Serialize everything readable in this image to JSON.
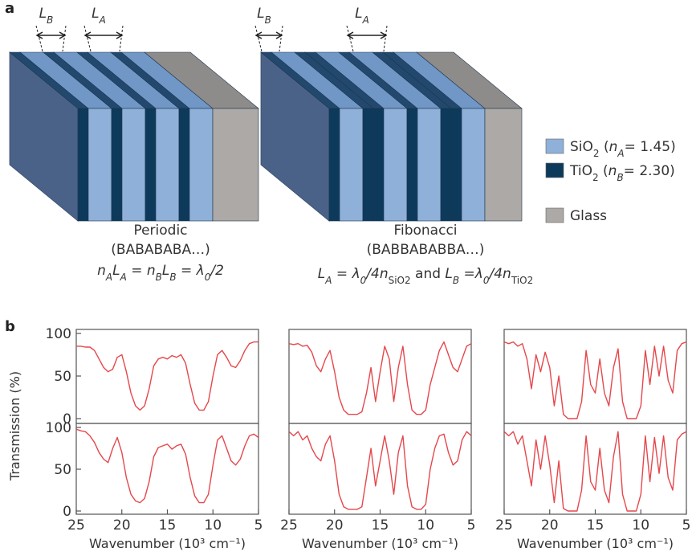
{
  "panel_a": {
    "label": "a",
    "dimensions": [
      {
        "letter": "L",
        "sub": "B"
      },
      {
        "letter": "L",
        "sub": "A"
      },
      {
        "letter": "L",
        "sub": "B"
      },
      {
        "letter": "L",
        "sub": "A"
      }
    ],
    "legend": [
      {
        "parts": [
          "SiO",
          "2",
          " (",
          "n",
          "A",
          "= 1.45)"
        ]
      },
      {
        "parts": [
          "TiO",
          "2",
          " (",
          "n",
          "B",
          "= 2.30)"
        ]
      },
      {
        "parts": [
          "Glass"
        ]
      }
    ],
    "periodic": {
      "name": "Periodic",
      "sequence": "(BABABABA…)",
      "formula": [
        "n",
        "A",
        "L",
        "A",
        " = ",
        "n",
        "B",
        "L",
        "B",
        " = ",
        "λ",
        "0",
        "/2"
      ]
    },
    "fibonacci": {
      "name": "Fibonacci",
      "sequence": "(BABBABABBA…)",
      "formula": [
        "L",
        "A",
        " = ",
        "λ",
        "0",
        "/4",
        "n",
        "SiO2",
        " and ",
        "L",
        "B",
        " =",
        "λ",
        "0",
        "/4",
        "n",
        "TiO2"
      ]
    }
  },
  "panel_b": {
    "label": "b",
    "ylabel": "Transmission (%)"
  },
  "chart_data": [
    {
      "type": "line",
      "x": [
        25,
        24.5,
        24,
        23.5,
        23,
        22.5,
        22,
        21.5,
        21,
        20.5,
        20,
        19.5,
        19,
        18.5,
        18,
        17.5,
        17,
        16.5,
        16,
        15.5,
        15,
        14.5,
        14,
        13.5,
        13,
        12.5,
        12,
        11.5,
        11,
        10.5,
        10,
        9.5,
        9,
        8.5,
        8,
        7.5,
        7,
        6.5,
        6,
        5.5,
        5
      ],
      "series": [
        {
          "color": "#e5474c",
          "values": [
            85,
            85,
            84,
            84,
            80,
            70,
            60,
            55,
            58,
            72,
            75,
            55,
            30,
            15,
            10,
            15,
            35,
            62,
            70,
            72,
            70,
            74,
            72,
            75,
            65,
            40,
            18,
            10,
            10,
            20,
            50,
            75,
            80,
            72,
            62,
            60,
            68,
            80,
            88,
            90,
            90
          ]
        }
      ],
      "xlim": [
        25,
        5
      ],
      "ylim": [
        0,
        100
      ],
      "yticks": [
        0,
        50,
        100
      ]
    },
    {
      "type": "line",
      "x": [
        25,
        24.5,
        24,
        23.5,
        23,
        22.5,
        22,
        21.5,
        21,
        20.5,
        20,
        19.5,
        19,
        18.5,
        18,
        17.5,
        17,
        16.5,
        16,
        15.5,
        15,
        14.5,
        14,
        13.5,
        13,
        12.5,
        12,
        11.5,
        11,
        10.5,
        10,
        9.5,
        9,
        8.5,
        8,
        7.5,
        7,
        6.5,
        6,
        5.5,
        5
      ],
      "series": [
        {
          "color": "#e5474c",
          "values": [
            88,
            87,
            88,
            85,
            86,
            78,
            62,
            55,
            70,
            80,
            55,
            25,
            10,
            5,
            5,
            5,
            8,
            30,
            60,
            20,
            55,
            85,
            70,
            20,
            60,
            85,
            40,
            10,
            5,
            5,
            10,
            40,
            60,
            80,
            90,
            75,
            60,
            55,
            70,
            85,
            88
          ]
        }
      ],
      "xlim": [
        25,
        5
      ],
      "ylim": [
        0,
        100
      ]
    },
    {
      "type": "line",
      "x": [
        25,
        24.5,
        24,
        23.5,
        23,
        22.5,
        22,
        21.5,
        21,
        20.5,
        20,
        19.5,
        19,
        18.5,
        18,
        17.5,
        17,
        16.5,
        16,
        15.5,
        15,
        14.5,
        14,
        13.5,
        13,
        12.5,
        12,
        11.5,
        11,
        10.5,
        10,
        9.5,
        9,
        8.5,
        8,
        7.5,
        7,
        6.5,
        6,
        5.5,
        5
      ],
      "series": [
        {
          "color": "#e5474c",
          "values": [
            90,
            88,
            90,
            85,
            88,
            70,
            35,
            75,
            55,
            78,
            60,
            15,
            50,
            5,
            0,
            0,
            0,
            20,
            80,
            40,
            30,
            70,
            30,
            15,
            60,
            82,
            20,
            0,
            0,
            0,
            15,
            80,
            40,
            85,
            50,
            85,
            45,
            30,
            80,
            88,
            90
          ]
        }
      ],
      "xlim": [
        25,
        5
      ],
      "ylim": [
        0,
        100
      ]
    },
    {
      "type": "line",
      "x": [
        25,
        24.5,
        24,
        23.5,
        23,
        22.5,
        22,
        21.5,
        21,
        20.5,
        20,
        19.5,
        19,
        18.5,
        18,
        17.5,
        17,
        16.5,
        16,
        15.5,
        15,
        14.5,
        14,
        13.5,
        13,
        12.5,
        12,
        11.5,
        11,
        10.5,
        10,
        9.5,
        9,
        8.5,
        8,
        7.5,
        7,
        6.5,
        6,
        5.5,
        5
      ],
      "series": [
        {
          "color": "#e5474c",
          "values": [
            98,
            96,
            95,
            90,
            82,
            70,
            62,
            58,
            75,
            88,
            70,
            40,
            20,
            12,
            10,
            15,
            35,
            65,
            76,
            78,
            80,
            74,
            78,
            80,
            68,
            40,
            18,
            10,
            10,
            20,
            55,
            85,
            90,
            75,
            60,
            55,
            62,
            78,
            90,
            92,
            88
          ]
        }
      ],
      "xlim": [
        25,
        5
      ],
      "ylim": [
        0,
        100
      ],
      "yticks": [
        0,
        50,
        100
      ],
      "xticks": [
        25,
        20,
        15,
        10,
        5
      ],
      "xlabel": "Wavenumber (10³ cm⁻¹)"
    },
    {
      "type": "line",
      "x": [
        25,
        24.5,
        24,
        23.5,
        23,
        22.5,
        22,
        21.5,
        21,
        20.5,
        20,
        19.5,
        19,
        18.5,
        18,
        17.5,
        17,
        16.5,
        16,
        15.5,
        15,
        14.5,
        14,
        13.5,
        13,
        12.5,
        12,
        11.5,
        11,
        10.5,
        10,
        9.5,
        9,
        8.5,
        8,
        7.5,
        7,
        6.5,
        6,
        5.5,
        5
      ],
      "series": [
        {
          "color": "#e5474c",
          "values": [
            95,
            90,
            95,
            85,
            90,
            75,
            65,
            60,
            80,
            90,
            60,
            20,
            5,
            2,
            2,
            2,
            5,
            40,
            75,
            30,
            60,
            90,
            60,
            20,
            70,
            90,
            30,
            5,
            2,
            2,
            8,
            50,
            75,
            90,
            92,
            70,
            55,
            60,
            85,
            95,
            90
          ]
        }
      ],
      "xlim": [
        25,
        5
      ],
      "ylim": [
        0,
        100
      ],
      "xticks": [
        25,
        20,
        15,
        10,
        5
      ],
      "xlabel": "Wavenumber (10³ cm⁻¹)"
    },
    {
      "type": "line",
      "x": [
        25,
        24.5,
        24,
        23.5,
        23,
        22.5,
        22,
        21.5,
        21,
        20.5,
        20,
        19.5,
        19,
        18.5,
        18,
        17.5,
        17,
        16.5,
        16,
        15.5,
        15,
        14.5,
        14,
        13.5,
        13,
        12.5,
        12,
        11.5,
        11,
        10.5,
        10,
        9.5,
        9,
        8.5,
        8,
        7.5,
        7,
        6.5,
        6,
        5.5,
        5
      ],
      "series": [
        {
          "color": "#e5474c",
          "values": [
            95,
            90,
            95,
            80,
            90,
            60,
            30,
            85,
            50,
            90,
            55,
            10,
            60,
            3,
            0,
            0,
            0,
            25,
            90,
            35,
            25,
            75,
            25,
            10,
            65,
            95,
            20,
            0,
            0,
            0,
            20,
            90,
            35,
            88,
            45,
            90,
            40,
            25,
            85,
            92,
            95
          ]
        }
      ],
      "xlim": [
        25,
        5
      ],
      "ylim": [
        0,
        100
      ],
      "xticks": [
        25,
        20,
        15,
        10,
        5
      ],
      "xlabel": "Wavenumber (10³ cm⁻¹)"
    }
  ]
}
